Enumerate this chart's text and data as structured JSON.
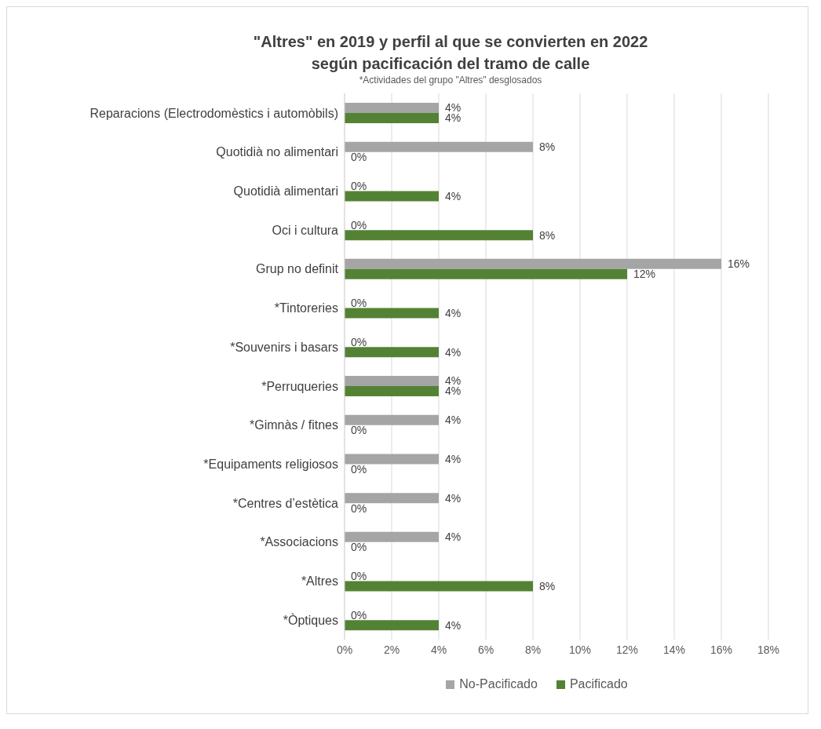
{
  "chart_data": {
    "type": "bar",
    "orientation": "horizontal",
    "title": "\"Altres\" en 2019 y perfil al que se convierten en 2022\nsegún pacificación del tramo de calle",
    "subtitle": "*Actividades del grupo \"Altres\" desglosados",
    "categories": [
      "Reparacions (Electrodomèstics i automòbils)",
      "Quotidià no alimentari",
      "Quotidià alimentari",
      "Oci i cultura",
      "Grup no definit",
      "*Tintoreries",
      "*Souvenirs i basars",
      "*Perruqueries",
      "*Gimnàs / fitnes",
      "*Equipaments religiosos",
      "*Centres d’estètica",
      "*Associacions",
      "*Altres",
      "*Òptiques"
    ],
    "series": [
      {
        "name": "No-Pacificado",
        "color": "#a5a5a5",
        "values": [
          4,
          8,
          0,
          0,
          16,
          0,
          0,
          4,
          4,
          4,
          4,
          4,
          0,
          0
        ],
        "value_labels": [
          "4%",
          "8%",
          "0%",
          "0%",
          "16%",
          "0%",
          "0%",
          "4%",
          "4%",
          "4%",
          "4%",
          "4%",
          "0%",
          "0%"
        ]
      },
      {
        "name": "Pacificado",
        "color": "#548235",
        "values": [
          4,
          0,
          4,
          8,
          12,
          4,
          4,
          4,
          0,
          0,
          0,
          0,
          8,
          4
        ],
        "value_labels": [
          "4%",
          "0%",
          "4%",
          "8%",
          "12%",
          "4%",
          "4%",
          "4%",
          "0%",
          "0%",
          "0%",
          "0%",
          "8%",
          "4%"
        ]
      }
    ],
    "xlim": [
      0,
      18
    ],
    "xticks": [
      {
        "value": 0,
        "label": "0%"
      },
      {
        "value": 2,
        "label": "2%"
      },
      {
        "value": 4,
        "label": "4%"
      },
      {
        "value": 6,
        "label": "6%"
      },
      {
        "value": 8,
        "label": "8%"
      },
      {
        "value": 10,
        "label": "10%"
      },
      {
        "value": 12,
        "label": "12%"
      },
      {
        "value": 14,
        "label": "14%"
      },
      {
        "value": 16,
        "label": "16%"
      },
      {
        "value": 18,
        "label": "18%"
      }
    ],
    "grid": "x",
    "legend": "bottom"
  }
}
